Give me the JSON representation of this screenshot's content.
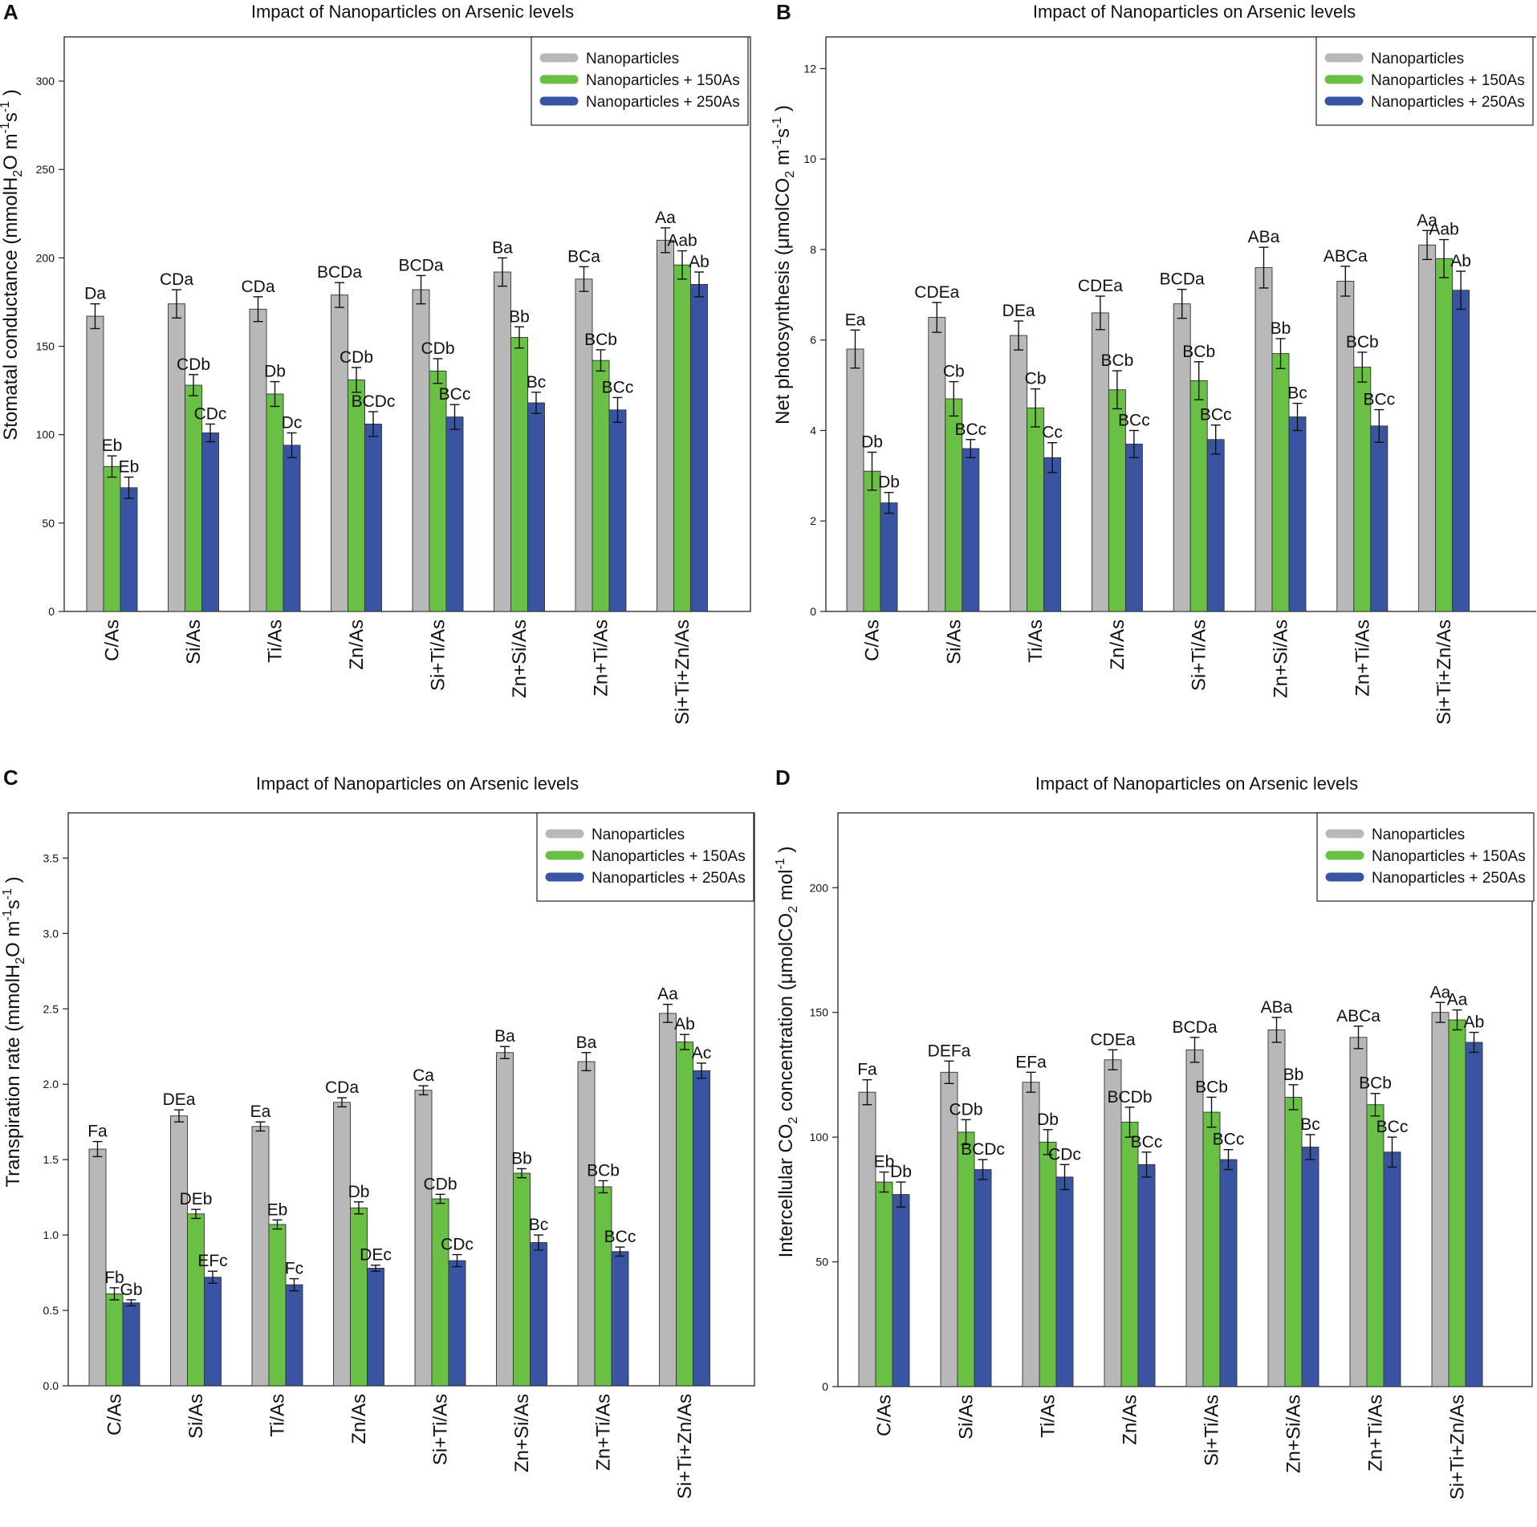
{
  "figure": {
    "panels": [
      {
        "letter": "A",
        "title": "Impact of Nanoparticles on Arsenic levels",
        "ylabel_main": "Stomatal conductance (mmolH",
        "ylabel_sub": "2",
        "ylabel_rest": "O m",
        "ylabel_sup1": "-1",
        "ylabel_mid": "s",
        "ylabel_sup2": "-1",
        "ylabel_end": " )"
      },
      {
        "letter": "B",
        "title": "Impact of Nanoparticles on Arsenic levels",
        "ylabel_main": "Net photosynthesis (μmolCO",
        "ylabel_sub": "2",
        "ylabel_rest": " m",
        "ylabel_sup1": "-1",
        "ylabel_mid": "s",
        "ylabel_sup2": "-1",
        "ylabel_end": " )"
      },
      {
        "letter": "C",
        "title": "Impact of Nanoparticles on Arsenic levels",
        "ylabel_main": "Transpiration rate (mmolH",
        "ylabel_sub": "2",
        "ylabel_rest": "O m",
        "ylabel_sup1": "-1",
        "ylabel_mid": "s",
        "ylabel_sup2": "-1",
        "ylabel_end": " )"
      },
      {
        "letter": "D",
        "title": "Impact of Nanoparticles on Arsenic levels",
        "ylabel_main": "Intercellular CO",
        "ylabel_sub": "2",
        "ylabel_rest": " concentration (μmolCO",
        "ylabel_sup1": "2",
        "ylabel_mid": " mol",
        "ylabel_sup2": "-1",
        "ylabel_end": " )"
      }
    ]
  },
  "colors": {
    "grey": "#b8b8b8",
    "green": "#6abf45",
    "blue": "#3a54a4"
  },
  "chart_data": [
    {
      "type": "bar",
      "panel": "A",
      "title": "Impact of Nanoparticles on Arsenic levels",
      "ylabel": "Stomatal conductance (mmolH2O m-1s-1 )",
      "xlabel": "",
      "categories": [
        "C/As",
        "Si/As",
        "Ti/As",
        "Zn/As",
        "Si+Ti/As",
        "Zn+Si/As",
        "Zn+Ti/As",
        "Si+Ti+Zn/As"
      ],
      "ylim": [
        0,
        325
      ],
      "yticks": [
        "0",
        "50",
        "100",
        "150",
        "200",
        "250",
        "300"
      ],
      "legend_position": "top-right",
      "series": [
        {
          "name": "Nanoparticles",
          "legend_label": "Nanoparticles",
          "color": "#b8b8b8",
          "values": [
            167,
            174,
            171,
            179,
            182,
            192,
            188,
            210
          ],
          "errors": [
            7,
            8,
            7,
            7,
            8,
            8,
            7,
            7
          ],
          "labels": [
            "Da",
            "CDa",
            "CDa",
            "BCDa",
            "BCDa",
            "Ba",
            "BCa",
            "Aa"
          ]
        },
        {
          "name": "Nanoparticles + 150As",
          "legend_label": "Nanoparticles  + 150As",
          "color": "#6abf45",
          "values": [
            82,
            128,
            123,
            131,
            136,
            155,
            142,
            196
          ],
          "errors": [
            6,
            6,
            7,
            7,
            7,
            6,
            6,
            8
          ],
          "labels": [
            "Eb",
            "CDb",
            "Db",
            "CDb",
            "CDb",
            "Bb",
            "BCb",
            "Aab"
          ]
        },
        {
          "name": "Nanoparticles + 250As",
          "legend_label": "Nanoparticles  + 250As",
          "color": "#3a54a4",
          "values": [
            70,
            101,
            94,
            106,
            110,
            118,
            114,
            185
          ],
          "errors": [
            6,
            5,
            7,
            7,
            7,
            6,
            7,
            7
          ],
          "labels": [
            "Eb",
            "CDc",
            "Dc",
            "BCDc",
            "BCc",
            "Bc",
            "BCc",
            "Ab"
          ]
        }
      ]
    },
    {
      "type": "bar",
      "panel": "B",
      "title": "Impact of Nanoparticles on Arsenic levels",
      "ylabel": "Net photosynthesis (μmolCO2 m-1s-1 )",
      "xlabel": "",
      "categories": [
        "C/As",
        "Si/As",
        "Ti/As",
        "Zn/As",
        "Si+Ti/As",
        "Zn+Si/As",
        "Zn+Ti/As",
        "Si+Ti+Zn/As"
      ],
      "ylim": [
        0,
        12.7
      ],
      "yticks": [
        "0",
        "2",
        "4",
        "6",
        "8",
        "10",
        "12"
      ],
      "legend_position": "top-right",
      "series": [
        {
          "name": "Nanoparticles",
          "legend_label": "Nanoparticles",
          "color": "#b8b8b8",
          "values": [
            5.8,
            6.5,
            6.1,
            6.6,
            6.8,
            7.6,
            7.3,
            8.1
          ],
          "errors": [
            0.42,
            0.33,
            0.32,
            0.37,
            0.32,
            0.45,
            0.33,
            0.32
          ],
          "labels": [
            "Ea",
            "CDEa",
            "DEa",
            "CDEa",
            "BCDa",
            "ABa",
            "ABCa",
            "Aa"
          ]
        },
        {
          "name": "Nanoparticles + 150As",
          "legend_label": "Nanoparticles  + 150As",
          "color": "#6abf45",
          "values": [
            3.1,
            4.7,
            4.5,
            4.9,
            5.1,
            5.7,
            5.4,
            7.8
          ],
          "errors": [
            0.42,
            0.38,
            0.42,
            0.42,
            0.42,
            0.33,
            0.33,
            0.42
          ],
          "labels": [
            "Db",
            "Cb",
            "Cb",
            "BCb",
            "BCb",
            "Bb",
            "BCb",
            "Aab"
          ]
        },
        {
          "name": "Nanoparticles + 250As",
          "legend_label": "Nanoparticles  + 250As",
          "color": "#3a54a4",
          "values": [
            2.4,
            3.6,
            3.4,
            3.7,
            3.8,
            4.3,
            4.1,
            7.1
          ],
          "errors": [
            0.23,
            0.2,
            0.33,
            0.3,
            0.32,
            0.3,
            0.36,
            0.42
          ],
          "labels": [
            "Db",
            "BCc",
            "Cc",
            "BCc",
            "BCc",
            "Bc",
            "BCc",
            "Ab"
          ]
        }
      ]
    },
    {
      "type": "bar",
      "panel": "C",
      "title": "Impact of Nanoparticles on Arsenic levels",
      "ylabel": "Transpiration rate (mmolH2O m-1s-1 )",
      "xlabel": "",
      "categories": [
        "C/As",
        "Si/As",
        "Ti/As",
        "Zn/As",
        "Si+Ti/As",
        "Zn+Si/As",
        "Zn+Ti/As",
        "Si+Ti+Zn/As"
      ],
      "ylim": [
        0,
        3.8
      ],
      "yticks": [
        "0.0",
        "0.5",
        "1.0",
        "1.5",
        "2.0",
        "2.5",
        "3.0",
        "3.5"
      ],
      "legend_position": "top-right",
      "series": [
        {
          "name": "Nanoparticles",
          "legend_label": "Nanoparticles",
          "color": "#b8b8b8",
          "values": [
            1.57,
            1.79,
            1.72,
            1.88,
            1.96,
            2.21,
            2.15,
            2.47
          ],
          "errors": [
            0.05,
            0.04,
            0.03,
            0.03,
            0.03,
            0.04,
            0.06,
            0.06
          ],
          "labels": [
            "Fa",
            "DEa",
            "Ea",
            "CDa",
            "Ca",
            "Ba",
            "Ba",
            "Aa"
          ]
        },
        {
          "name": "Nanoparticles + 150As",
          "legend_label": "Nanoparticles  + 150As",
          "color": "#6abf45",
          "values": [
            0.61,
            1.14,
            1.07,
            1.18,
            1.24,
            1.41,
            1.32,
            2.28
          ],
          "errors": [
            0.04,
            0.03,
            0.03,
            0.04,
            0.03,
            0.03,
            0.04,
            0.05
          ],
          "labels": [
            "Fb",
            "DEb",
            "Eb",
            "Db",
            "CDb",
            "Bb",
            "BCb",
            "Ab"
          ]
        },
        {
          "name": "Nanoparticles + 250As",
          "legend_label": "Nanoparticles  + 250As",
          "color": "#3a54a4",
          "values": [
            0.55,
            0.72,
            0.67,
            0.78,
            0.83,
            0.95,
            0.89,
            2.09
          ],
          "errors": [
            0.02,
            0.04,
            0.04,
            0.02,
            0.04,
            0.05,
            0.03,
            0.05
          ],
          "labels": [
            "Gb",
            "EFc",
            "Fc",
            "DEc",
            "CDc",
            "Bc",
            "BCc",
            "Ac"
          ]
        }
      ]
    },
    {
      "type": "bar",
      "panel": "D",
      "title": "Impact of Nanoparticles on Arsenic levels",
      "ylabel": "Intercellular CO2 concentration (μmolCO2 mol-1 )",
      "xlabel": "",
      "categories": [
        "C/As",
        "Si/As",
        "Ti/As",
        "Zn/As",
        "Si+Ti/As",
        "Zn+Si/As",
        "Zn+Ti/As",
        "Si+Ti+Zn/As"
      ],
      "ylim": [
        0,
        230
      ],
      "yticks": [
        "0",
        "50",
        "100",
        "150",
        "200"
      ],
      "legend_position": "top-right",
      "series": [
        {
          "name": "Nanoparticles",
          "legend_label": "Nanoparticles",
          "color": "#b8b8b8",
          "values": [
            118,
            126,
            122,
            131,
            135,
            143,
            140,
            150
          ],
          "errors": [
            5,
            4.5,
            4,
            4,
            5,
            5,
            4.5,
            4
          ],
          "labels": [
            "Fa",
            "DEFa",
            "EFa",
            "CDEa",
            "BCDa",
            "ABa",
            "ABCa",
            "Aa"
          ]
        },
        {
          "name": "Nanoparticles + 150As",
          "legend_label": "Nanoparticles  + 150As",
          "color": "#6abf45",
          "values": [
            82,
            102,
            98,
            106,
            110,
            116,
            113,
            147
          ],
          "errors": [
            4,
            5,
            5,
            6,
            6,
            5,
            4.5,
            4
          ],
          "labels": [
            "Eb",
            "CDb",
            "Db",
            "BCDb",
            "BCb",
            "Bb",
            "BCb",
            "Aa"
          ]
        },
        {
          "name": "Nanoparticles + 250As",
          "legend_label": "Nanoparticles  + 250As",
          "color": "#3a54a4",
          "values": [
            77,
            87,
            84,
            89,
            91,
            96,
            94,
            138
          ],
          "errors": [
            5,
            4,
            5,
            5,
            4,
            5,
            6,
            4
          ],
          "labels": [
            "Db",
            "BCDc",
            "CDc",
            "BCc",
            "BCc",
            "Bc",
            "BCc",
            "Ab"
          ]
        }
      ]
    }
  ]
}
